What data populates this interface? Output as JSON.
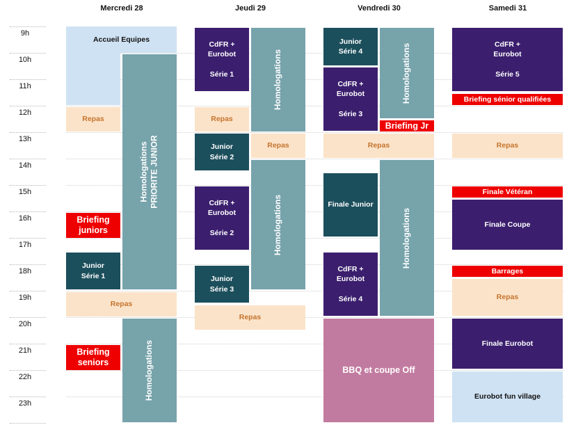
{
  "days": [
    "Mercredi 28",
    "Jeudi 29",
    "Vendredi 30",
    "Samedi 31"
  ],
  "hours": [
    "9h",
    "10h",
    "11h",
    "12h",
    "13h",
    "14h",
    "15h",
    "16h",
    "17h",
    "18h",
    "19h",
    "20h",
    "21h",
    "22h",
    "23h"
  ],
  "events": {
    "mer_accueil": "Accueil Equipes",
    "mer_repas1": "Repas",
    "mer_homolog": "Homologations\nPRIORITE JUNIOR",
    "mer_briefing_juniors": "Briefing\njuniors",
    "mer_junior_s1": "Junior\nSérie 1",
    "mer_repas2": "Repas",
    "mer_briefing_seniors": "Briefing\nseniors",
    "mer_homolog2": "Homologations",
    "jeu_cdfr_s1": "CdFR +\nEurobot\n\nSérie 1",
    "jeu_homolog1": "Homologations",
    "jeu_repas1": "Repas",
    "jeu_junior_s2": "Junior\nSérie 2",
    "jeu_repas_b": "Repas",
    "jeu_cdfr_s2": "CdFR +\nEurobot\n\nSérie 2",
    "jeu_homolog2": "Homologations",
    "jeu_junior_s3": "Junior\nSérie 3",
    "jeu_repas2": "Repas",
    "ven_junior_s4": "Junior\nSérie 4",
    "ven_homolog1": "Homologations",
    "ven_cdfr_s3": "CdFR +\nEurobot\n\nSérie 3",
    "ven_briefing_jr": "Briefing Jr",
    "ven_repas": "Repas",
    "ven_finale_junior": "Finale Junior",
    "ven_homolog2": "Homologations",
    "ven_cdfr_s4": "CdFR +\nEurobot\n\nSérie 4",
    "ven_bbq": "BBQ et coupe Off",
    "sam_cdfr_s5": "CdFR +\nEurobot\n\nSérie 5",
    "sam_briefing_senior": "Briefing sénior qualifiées",
    "sam_repas1": "Repas",
    "sam_finale_veteran": "Finale Vétéran",
    "sam_finale_coupe": "Finale Coupe",
    "sam_barrages": "Barrages",
    "sam_repas2": "Repas",
    "sam_finale_eurobot": "Finale Eurobot",
    "sam_fun_village": "Eurobot fun village"
  },
  "colors": {
    "navy": "#3b1f6e",
    "teal": "#1c4f5c",
    "steel": "#77a3ab",
    "meal": "#fbe3c9",
    "meal_text": "#c5742e",
    "red": "#ee0000",
    "light_blue": "#cfe2f3",
    "pink": "#c27ba0"
  }
}
